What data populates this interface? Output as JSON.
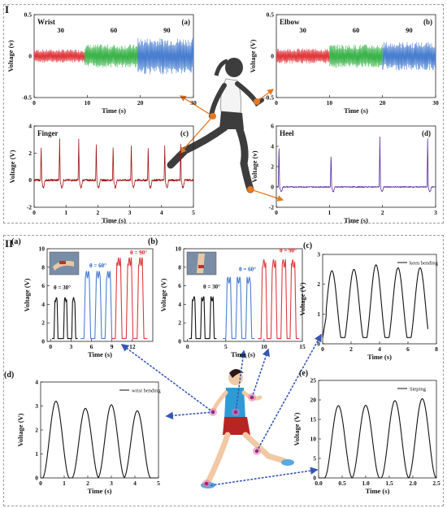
{
  "figure": {
    "section_1": "I",
    "section_2": "II"
  },
  "colors": {
    "red": "#e0393e",
    "green": "#3cb44b",
    "blue": "#4a7fd0",
    "dark_red": "#a01515",
    "purple": "#5b2b9b",
    "black": "#111111",
    "blue_label": "#2060c8",
    "red_label": "#e02020",
    "orange": "#e8781e",
    "dots": "#3557b5"
  },
  "illustrations": [
    {
      "name": "runner-woman-figure",
      "icon": "runner-silhouette"
    },
    {
      "name": "runner-girl-figure",
      "icon": "runner-cartoon"
    }
  ],
  "chart_data": [
    {
      "type": "line",
      "panel": "(a)",
      "title": "Wrist",
      "xlabel": "Time (s)",
      "ylabel": "Voltage (v)",
      "xlim": [
        0,
        30
      ],
      "ylim": [
        -0.5,
        0.5
      ],
      "xticks": [
        "0",
        "10",
        "20",
        "30"
      ],
      "yticks": [
        "-0.5",
        "0",
        "0.5"
      ],
      "annotations": [
        "30",
        "60",
        "90"
      ],
      "series": [
        {
          "range": [
            0,
            9.5
          ],
          "amplitude": 0.08,
          "color": "#e0393e"
        },
        {
          "range": [
            9.5,
            19.5
          ],
          "amplitude": 0.14,
          "color": "#3cb44b"
        },
        {
          "range": [
            19.5,
            30
          ],
          "amplitude": 0.22,
          "color": "#4a7fd0"
        }
      ]
    },
    {
      "type": "line",
      "panel": "(b)",
      "title": "Elbow",
      "xlabel": "Time (s)",
      "ylabel": "Voltage (V)",
      "xlim": [
        0,
        30
      ],
      "ylim": [
        -0.5,
        0.5
      ],
      "xticks": [
        "0",
        "10",
        "20",
        "30"
      ],
      "yticks": [
        "-0.5",
        "0",
        "0.5"
      ],
      "annotations": [
        "30",
        "60",
        "90"
      ],
      "series": [
        {
          "range": [
            0,
            10
          ],
          "amplitude": 0.09,
          "color": "#e0393e"
        },
        {
          "range": [
            10,
            20
          ],
          "amplitude": 0.14,
          "color": "#3cb44b"
        },
        {
          "range": [
            20,
            30
          ],
          "amplitude": 0.17,
          "color": "#4a7fd0"
        }
      ]
    },
    {
      "type": "line",
      "panel": "(c)",
      "title": "Finger",
      "xlabel": "Time (s)",
      "ylabel": "Voltage (V)",
      "xlim": [
        0,
        5
      ],
      "ylim": [
        -2,
        4
      ],
      "xticks": [
        "0",
        "1",
        "2",
        "3",
        "4",
        "5"
      ],
      "yticks": [
        "-2",
        "0",
        "2",
        "4"
      ],
      "peaks": [
        0.22,
        0.8,
        1.4,
        1.95,
        2.48,
        3.05,
        3.58,
        4.1,
        4.6
      ],
      "peak_values": [
        2.5,
        3.0,
        3.0,
        2.6,
        2.6,
        2.6,
        2.5,
        2.5,
        2.6
      ],
      "color": "#a01515"
    },
    {
      "type": "line",
      "panel": "(d)",
      "title": "Heel",
      "xlabel": "Time (s)",
      "ylabel": "Voltage (v)",
      "xlim": [
        0,
        3
      ],
      "ylim": [
        -2,
        6
      ],
      "xticks": [
        "0",
        "1",
        "2",
        "3"
      ],
      "yticks": [
        "-2",
        "0",
        "2",
        "4",
        "6"
      ],
      "peaks": [
        0.05,
        1.03,
        1.95,
        2.85
      ],
      "peak_values": [
        4.3,
        3.4,
        4.9,
        4.7
      ],
      "color": "#5b2b9b"
    },
    {
      "type": "line",
      "panel": "(a)",
      "xlabel": "Time (s)",
      "ylabel": "Voltage (V)",
      "xlim": [
        -0.5,
        15
      ],
      "ylim": [
        0,
        10
      ],
      "xticks": [
        "0",
        "3",
        "6",
        "9",
        "12"
      ],
      "yticks": [
        "0",
        "2",
        "4",
        "6",
        "8",
        "10"
      ],
      "annotations": [
        "θ = 30°",
        "θ = 60°",
        "θ = 90°"
      ],
      "series": [
        {
          "peaks": [
            0.8,
            2.2,
            3.4
          ],
          "amplitude": 4.5,
          "width": 0.6,
          "color": "#111111"
        },
        {
          "peaks": [
            5.4,
            7.0,
            8.5
          ],
          "amplitude": 7.2,
          "width": 1.0,
          "color": "#4a7fd0"
        },
        {
          "peaks": [
            10.0,
            11.6,
            13.2
          ],
          "amplitude": 8.6,
          "width": 1.0,
          "color": "#e0393e"
        }
      ]
    },
    {
      "type": "line",
      "panel": "(b)",
      "xlabel": "Time (s)",
      "ylabel": "Voltage (V)",
      "xlim": [
        -0.5,
        15
      ],
      "ylim": [
        0,
        10
      ],
      "xticks": [
        "0",
        "5",
        "10",
        "15"
      ],
      "yticks": [
        "0",
        "2",
        "4",
        "6",
        "8",
        "10"
      ],
      "annotations": [
        "θ = 30°",
        "θ = 60°",
        "θ = 90°"
      ],
      "series": [
        {
          "peaks": [
            0.8,
            2.0,
            3.2
          ],
          "amplitude": 4.6,
          "width": 0.6,
          "color": "#111111"
        },
        {
          "peaks": [
            5.4,
            6.7,
            8.0
          ],
          "amplitude": 6.6,
          "width": 0.8,
          "color": "#4a7fd0"
        },
        {
          "peaks": [
            10.0,
            11.3,
            12.6,
            13.8
          ],
          "amplitude": 8.4,
          "width": 0.8,
          "color": "#e0393e"
        }
      ]
    },
    {
      "type": "line",
      "panel": "(c)",
      "xlabel": "Time (s)",
      "ylabel": "Voltage (V)",
      "xlim": [
        0,
        8
      ],
      "ylim": [
        0,
        3
      ],
      "xticks": [
        "0",
        "2",
        "4",
        "6",
        "8"
      ],
      "yticks": [
        "0",
        "1",
        "2",
        "3"
      ],
      "legend": "keen bending",
      "peaks": [
        0.65,
        2.2,
        3.75,
        5.3,
        6.85
      ],
      "peak_values": [
        2.45,
        2.5,
        2.65,
        2.55,
        2.55
      ],
      "color": "#111111"
    },
    {
      "type": "line",
      "panel": "(d)",
      "xlabel": "Time (s)",
      "ylabel": "Voltage (V)",
      "xlim": [
        0,
        5
      ],
      "ylim": [
        0,
        4
      ],
      "xticks": [
        "0",
        "1",
        "2",
        "3",
        "4",
        "5"
      ],
      "yticks": [
        "0",
        "1",
        "2",
        "3",
        "4"
      ],
      "legend": "wrist bending",
      "peaks": [
        0.65,
        1.9,
        3.0,
        4.1
      ],
      "peak_values": [
        3.2,
        2.9,
        3.05,
        2.8
      ],
      "color": "#111111"
    },
    {
      "type": "line",
      "panel": "(e)",
      "xlabel": "Time (s)",
      "ylabel": "Voltage (V)",
      "xlim": [
        0,
        2.5
      ],
      "ylim": [
        0,
        25
      ],
      "xticks": [
        "0.0",
        "0.5",
        "1.0",
        "1.5",
        "2.0",
        "2.5"
      ],
      "yticks": [
        "0",
        "5",
        "10",
        "15",
        "20",
        "25"
      ],
      "legend": "Steping",
      "peaks": [
        0.42,
        1.0,
        1.62,
        2.2
      ],
      "peak_values": [
        18.5,
        18.6,
        19.8,
        20.3
      ],
      "color": "#111111"
    }
  ]
}
